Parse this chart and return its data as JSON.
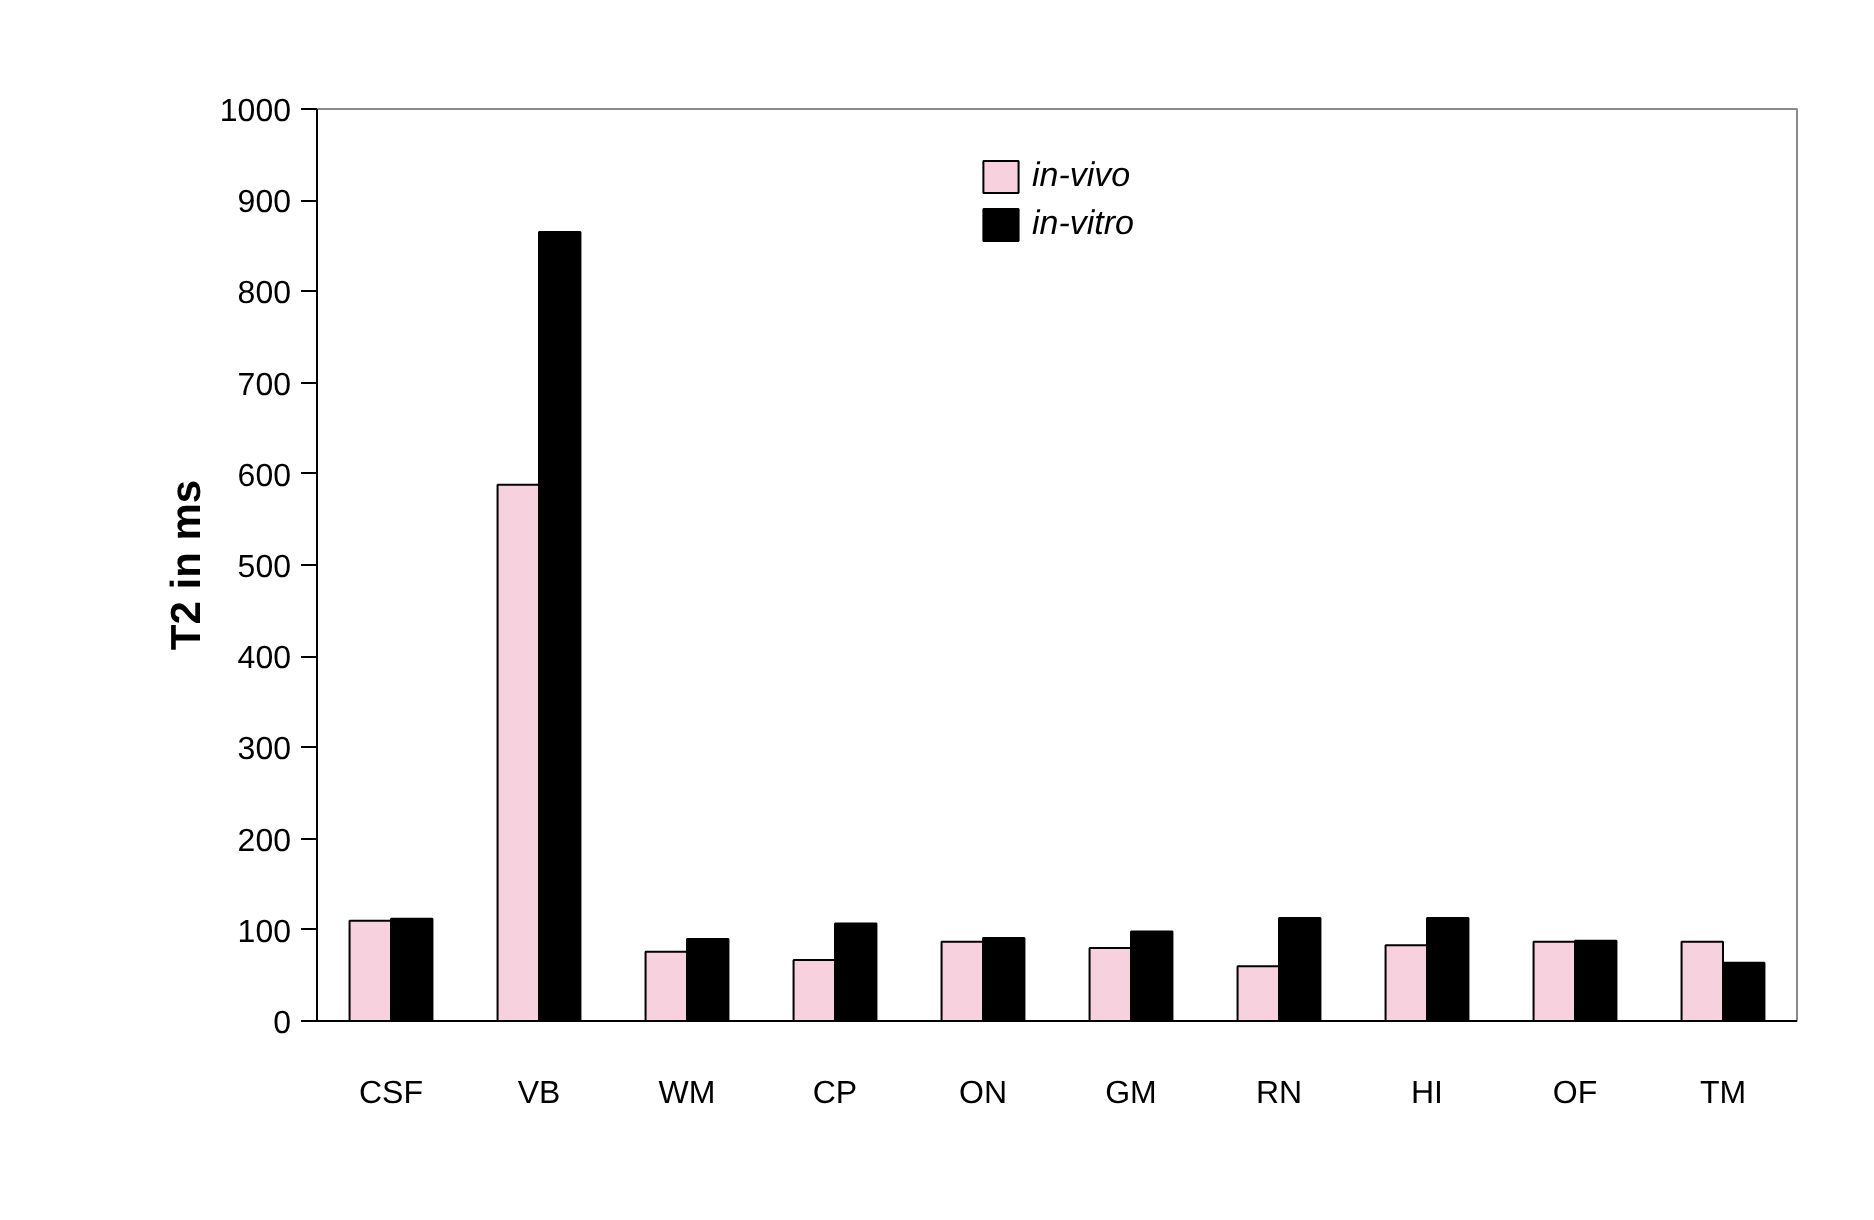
{
  "chart_data": {
    "type": "bar",
    "ylabel": "T2 in ms",
    "categories": [
      "CSF",
      "VB",
      "WM",
      "CP",
      "ON",
      "GM",
      "RN",
      "HI",
      "OF",
      "TM"
    ],
    "series": [
      {
        "name": "in-vivo",
        "color": "#f7d1dd",
        "values": [
          110,
          588,
          76,
          67,
          87,
          80,
          60,
          83,
          87,
          87
        ]
      },
      {
        "name": "in-vitro",
        "color": "#000000",
        "values": [
          112,
          865,
          90,
          107,
          91,
          98,
          113,
          113,
          88,
          64
        ]
      }
    ],
    "ylim": [
      0,
      1000
    ],
    "yticks": [
      0,
      100,
      200,
      300,
      400,
      500,
      600,
      700,
      800,
      900,
      1000
    ],
    "grid": false,
    "legend": "top"
  }
}
